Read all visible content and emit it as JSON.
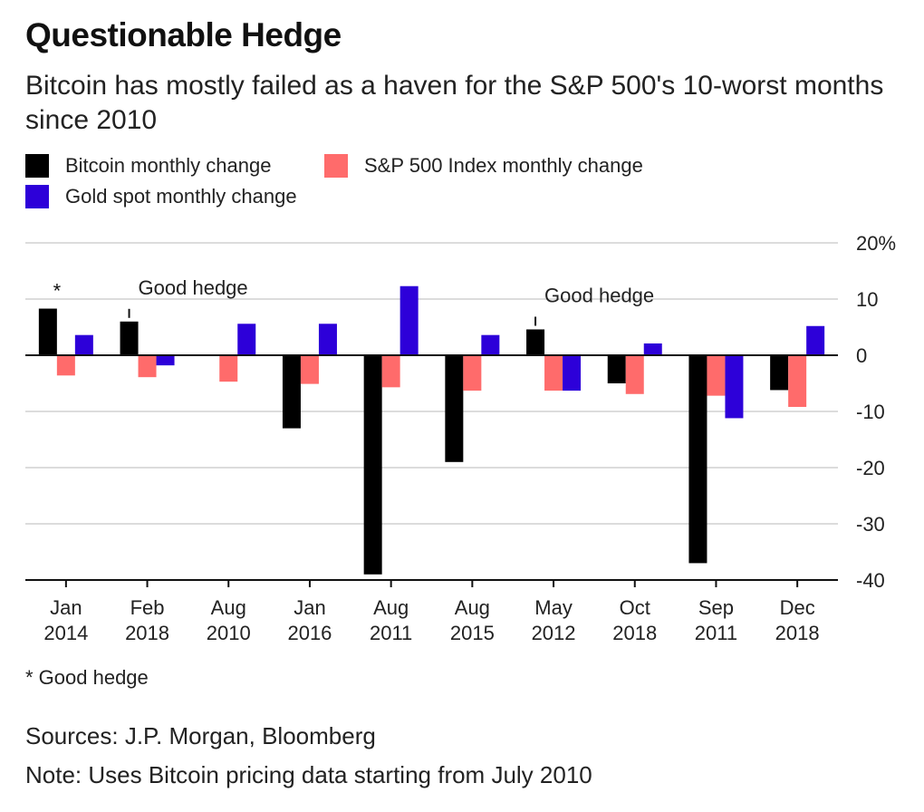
{
  "title": "Questionable Hedge",
  "subtitle": "Bitcoin has mostly failed as a haven for the S&P 500's 10-worst months since 2010",
  "legend": [
    {
      "label": "Bitcoin monthly change",
      "color": "#000000"
    },
    {
      "label": "S&P 500 Index monthly change",
      "color": "#ff6b6b"
    },
    {
      "label": "Gold spot monthly change",
      "color": "#2d00d9"
    }
  ],
  "chart_data": {
    "type": "bar",
    "categories": [
      [
        "Jan",
        "2014"
      ],
      [
        "Feb",
        "2018"
      ],
      [
        "Aug",
        "2010"
      ],
      [
        "Jan",
        "2016"
      ],
      [
        "Aug",
        "2011"
      ],
      [
        "Aug",
        "2015"
      ],
      [
        "May",
        "2012"
      ],
      [
        "Oct",
        "2018"
      ],
      [
        "Sep",
        "2011"
      ],
      [
        "Dec",
        "2018"
      ]
    ],
    "series": [
      {
        "name": "Bitcoin monthly change",
        "color": "#000000",
        "values": [
          8.3,
          6.0,
          null,
          -13.0,
          -39.0,
          -19.0,
          4.6,
          -5.0,
          -37.0,
          -6.2
        ]
      },
      {
        "name": "S&P 500 Index monthly change",
        "color": "#ff6b6b",
        "values": [
          -3.6,
          -3.9,
          -4.7,
          -5.1,
          -5.7,
          -6.3,
          -6.3,
          -6.9,
          -7.2,
          -9.2
        ]
      },
      {
        "name": "Gold spot monthly change",
        "color": "#2d00d9",
        "values": [
          3.6,
          -1.8,
          5.6,
          5.6,
          12.3,
          3.6,
          -6.3,
          2.1,
          -11.2,
          5.2
        ]
      }
    ],
    "ylim": [
      -40,
      20
    ],
    "yticks": [
      20,
      10,
      0,
      -10,
      -20,
      -30,
      -40
    ],
    "ytick_labels": [
      "20%",
      "10",
      "0",
      "-10",
      "-20",
      "-30",
      "-40"
    ],
    "annotations": [
      {
        "text": "*",
        "category_index": 0
      },
      {
        "text": "Good hedge",
        "category_index": 1
      },
      {
        "text": "Good hedge",
        "category_index": 6
      }
    ]
  },
  "footnote": "* Good hedge",
  "sources": "Sources: J.P. Morgan, Bloomberg",
  "note": "Note: Uses Bitcoin pricing data starting from July 2010"
}
